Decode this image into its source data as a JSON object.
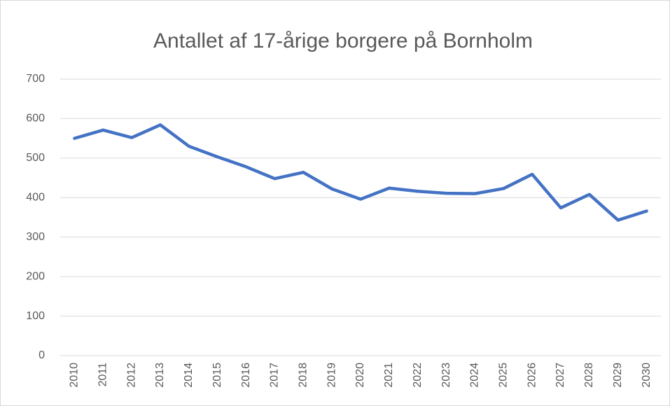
{
  "chart_data": {
    "type": "line",
    "title": "Antallet af 17-årige borgere på Bornholm",
    "categories": [
      "2010",
      "2011",
      "2012",
      "2013",
      "2014",
      "2015",
      "2016",
      "2017",
      "2018",
      "2019",
      "2020",
      "2021",
      "2022",
      "2023",
      "2024",
      "2025",
      "2026",
      "2027",
      "2028",
      "2029",
      "2030"
    ],
    "series": [
      {
        "name": "17-årige",
        "color": "#4472c4",
        "values": [
          550,
          571,
          552,
          584,
          530,
          503,
          478,
          448,
          464,
          422,
          396,
          424,
          416,
          411,
          410,
          423,
          459,
          374,
          408,
          343,
          366
        ]
      }
    ],
    "ylim": [
      0,
      700
    ],
    "yticks": [
      0,
      100,
      200,
      300,
      400,
      500,
      600,
      700
    ],
    "grid": true
  }
}
